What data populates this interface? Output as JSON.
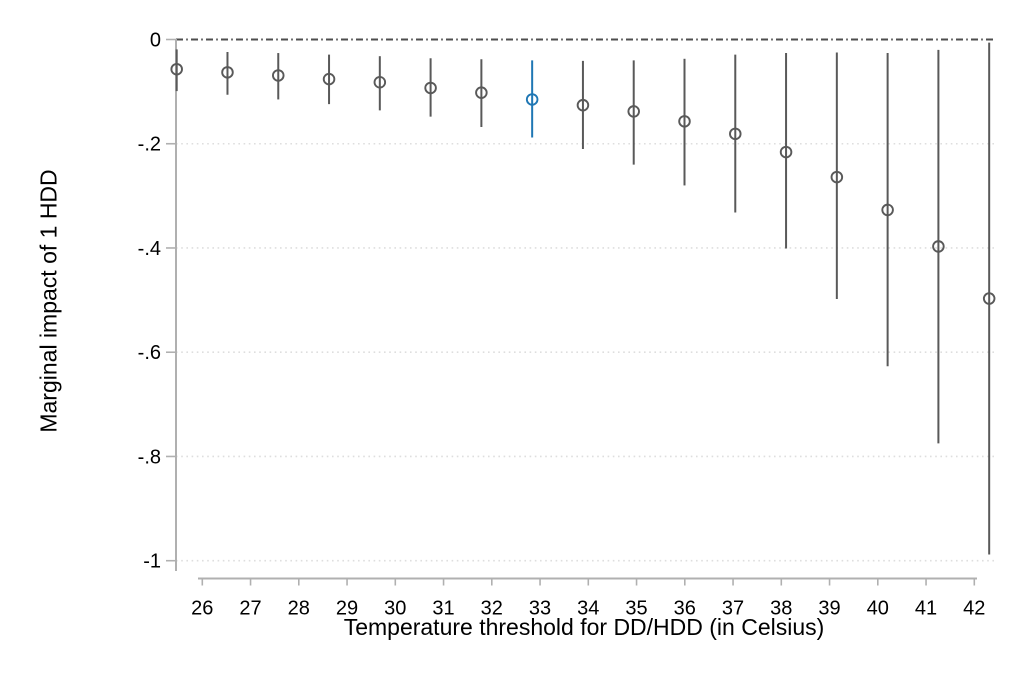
{
  "figure": {
    "background": "#ffffff"
  },
  "chart_data": {
    "type": "scatter",
    "subtype": "coefficient-plot-with-confidence-intervals",
    "title": "",
    "xlabel": "Temperature threshold for DD/HDD (in Celsius)",
    "ylabel": "Marginal impact of 1 HDD",
    "x_tick_labels": [
      "26",
      "27",
      "28",
      "29",
      "30",
      "31",
      "32",
      "33",
      "34",
      "35",
      "36",
      "37",
      "38",
      "39",
      "40",
      "41",
      "42"
    ],
    "x_tick_values": [
      26,
      27,
      28,
      29,
      30,
      31,
      32,
      33,
      34,
      35,
      36,
      37,
      38,
      39,
      40,
      41,
      42
    ],
    "y_tick_labels": [
      "0",
      "-.2",
      "-.4",
      "-.6",
      "-.8",
      "-1"
    ],
    "y_tick_values": [
      0,
      -0.2,
      -0.4,
      -0.6,
      -0.8,
      -1
    ],
    "ylim": [
      -1,
      0
    ],
    "xlim": [
      25.45,
      42.45
    ],
    "grid": "horizontal-dotted",
    "legend": "none",
    "reference_line": {
      "value": 0,
      "style": "dashed"
    },
    "points": [
      {
        "threshold": 26,
        "estimate": -0.057,
        "ci_upper": -0.019,
        "ci_lower": -0.099,
        "highlighted": false
      },
      {
        "threshold": 27,
        "estimate": -0.063,
        "ci_upper": -0.024,
        "ci_lower": -0.106,
        "highlighted": false
      },
      {
        "threshold": 28,
        "estimate": -0.069,
        "ci_upper": -0.026,
        "ci_lower": -0.115,
        "highlighted": false
      },
      {
        "threshold": 29,
        "estimate": -0.076,
        "ci_upper": -0.029,
        "ci_lower": -0.124,
        "highlighted": false
      },
      {
        "threshold": 30,
        "estimate": -0.082,
        "ci_upper": -0.032,
        "ci_lower": -0.136,
        "highlighted": false
      },
      {
        "threshold": 31,
        "estimate": -0.093,
        "ci_upper": -0.036,
        "ci_lower": -0.148,
        "highlighted": false
      },
      {
        "threshold": 32,
        "estimate": -0.102,
        "ci_upper": -0.038,
        "ci_lower": -0.168,
        "highlighted": false
      },
      {
        "threshold": 33,
        "estimate": -0.115,
        "ci_upper": -0.04,
        "ci_lower": -0.188,
        "highlighted": true
      },
      {
        "threshold": 34,
        "estimate": -0.126,
        "ci_upper": -0.041,
        "ci_lower": -0.21,
        "highlighted": false
      },
      {
        "threshold": 35,
        "estimate": -0.138,
        "ci_upper": -0.04,
        "ci_lower": -0.24,
        "highlighted": false
      },
      {
        "threshold": 36,
        "estimate": -0.157,
        "ci_upper": -0.037,
        "ci_lower": -0.28,
        "highlighted": false
      },
      {
        "threshold": 37,
        "estimate": -0.181,
        "ci_upper": -0.029,
        "ci_lower": -0.332,
        "highlighted": false
      },
      {
        "threshold": 38,
        "estimate": -0.216,
        "ci_upper": -0.026,
        "ci_lower": -0.401,
        "highlighted": false
      },
      {
        "threshold": 39,
        "estimate": -0.264,
        "ci_upper": -0.025,
        "ci_lower": -0.498,
        "highlighted": false
      },
      {
        "threshold": 40,
        "estimate": -0.327,
        "ci_upper": -0.026,
        "ci_lower": -0.627,
        "highlighted": false
      },
      {
        "threshold": 41,
        "estimate": -0.397,
        "ci_upper": -0.02,
        "ci_lower": -0.775,
        "highlighted": false
      },
      {
        "threshold": 42,
        "estimate": -0.497,
        "ci_upper": -0.006,
        "ci_lower": -0.988,
        "highlighted": false
      }
    ],
    "colors": {
      "default_point": "#595959",
      "highlight_point": "#1f77b4",
      "axis": "#b0b0b0",
      "grid": "#dedede",
      "reference_line": "#4d4d4d",
      "text": "#000000"
    }
  }
}
